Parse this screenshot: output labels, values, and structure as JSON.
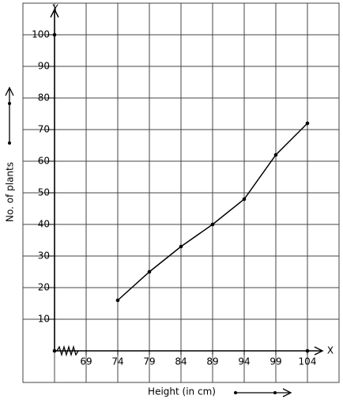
{
  "chart_data": {
    "type": "line",
    "x_label": "Height (in cm)",
    "y_label": "No. of plants",
    "x_axis_name": "X",
    "y_axis_name": "Y",
    "x": [
      74,
      79,
      84,
      89,
      94,
      99,
      104
    ],
    "series": [
      {
        "color": "#000000",
        "values": [
          16,
          25,
          33,
          40,
          48,
          62,
          72
        ]
      }
    ],
    "xlim": [
      64,
      106.5
    ],
    "xticks": [
      69,
      74,
      79,
      84,
      89,
      94,
      99,
      104
    ],
    "ylim": [
      0,
      108
    ],
    "yticks": [
      10,
      20,
      30,
      40,
      50,
      60,
      70,
      80,
      90,
      100
    ],
    "grid": true
  }
}
